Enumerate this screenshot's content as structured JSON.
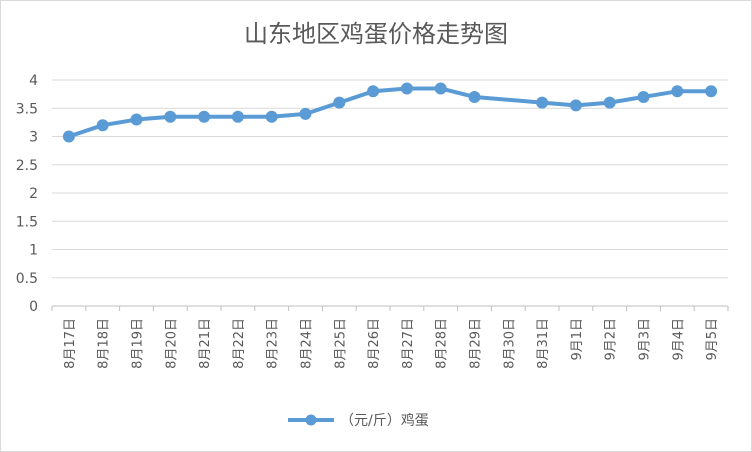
{
  "chart_data": {
    "type": "line",
    "title": "山东地区鸡蛋价格走势图",
    "categories": [
      "8月17日",
      "8月18日",
      "8月19日",
      "8月20日",
      "8月21日",
      "8月22日",
      "8月23日",
      "8月24日",
      "8月25日",
      "8月26日",
      "8月27日",
      "8月28日",
      "8月29日",
      "8月30日",
      "8月31日",
      "9月1日",
      "9月2日",
      "9月3日",
      "9月4日",
      "9月5日"
    ],
    "series": [
      {
        "name": "（元/斤）鸡蛋",
        "color": "#5b9bd5",
        "values": [
          3.0,
          3.2,
          3.3,
          3.35,
          3.35,
          3.35,
          3.35,
          3.4,
          3.6,
          3.8,
          3.85,
          3.85,
          3.7,
          null,
          3.6,
          3.55,
          3.6,
          3.7,
          3.8,
          3.8
        ]
      }
    ],
    "ylim": [
      0,
      4
    ],
    "yticks": [
      "0",
      "0.5",
      "1",
      "1.5",
      "2",
      "2.5",
      "3",
      "3.5",
      "4"
    ],
    "grid": true,
    "legend_position": "bottom"
  }
}
